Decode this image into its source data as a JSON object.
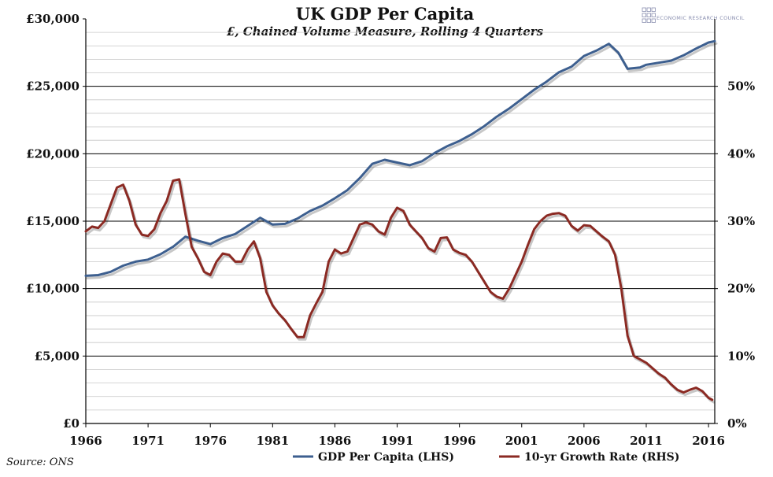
{
  "chart_data": {
    "type": "line",
    "title": "UK GDP Per Capita",
    "subtitle": "£, Chained Volume Measure, Rolling 4 Quarters",
    "source": "Source: ONS",
    "logo_text": "ECONOMIC RESEARCH COUNCIL",
    "xlim": [
      1966,
      2016.5
    ],
    "x_ticks": [
      "1966",
      "1971",
      "1976",
      "1981",
      "1986",
      "1991",
      "1996",
      "2001",
      "2006",
      "2011",
      "2016"
    ],
    "y_left": {
      "ylim": [
        0,
        30000
      ],
      "ticks": [
        "£0",
        "£5,000",
        "£10,000",
        "£15,000",
        "£20,000",
        "£25,000",
        "£30,000"
      ]
    },
    "y_right": {
      "ylim": [
        0,
        60
      ],
      "ticks": [
        "0%",
        "10%",
        "20%",
        "30%",
        "40%",
        "50%"
      ]
    },
    "grid": true,
    "legend_position": "bottom",
    "colors": {
      "gdp": "#3d5f8f",
      "growth": "#8b2a23",
      "axis": "#000000",
      "grid_major": "#000000",
      "grid_minor": "#c8c8c8",
      "logo": "#8a8fb0"
    },
    "series": [
      {
        "name": "GDP Per Capita (LHS)",
        "axis": "left",
        "x": [
          1966,
          1967,
          1968,
          1969,
          1970,
          1971,
          1972,
          1973,
          1974,
          1975,
          1976,
          1977,
          1978,
          1979,
          1980,
          1981,
          1982,
          1983,
          1984,
          1985,
          1986,
          1987,
          1988,
          1989,
          1990,
          1991,
          1992,
          1993,
          1994,
          1995,
          1996,
          1997,
          1998,
          1999,
          2000,
          2001,
          2002,
          2003,
          2004,
          2005,
          2006,
          2007,
          2008,
          2008.75,
          2009.5,
          2010.5,
          2011,
          2012,
          2013,
          2014,
          2015,
          2016,
          2016.5
        ],
        "values": [
          10950,
          11000,
          11250,
          11700,
          12000,
          12150,
          12550,
          13100,
          13850,
          13550,
          13300,
          13750,
          14050,
          14650,
          15250,
          14750,
          14800,
          15200,
          15750,
          16150,
          16700,
          17300,
          18200,
          19250,
          19550,
          19350,
          19150,
          19450,
          20050,
          20550,
          20950,
          21450,
          22050,
          22750,
          23350,
          24050,
          24750,
          25350,
          26050,
          26450,
          27250,
          27650,
          28150,
          27500,
          26300,
          26400,
          26600,
          26750,
          26900,
          27300,
          27800,
          28250,
          28350
        ]
      },
      {
        "name": "10-yr Growth Rate (RHS)",
        "axis": "right",
        "x": [
          1966,
          1966.5,
          1967,
          1967.5,
          1968,
          1968.5,
          1969,
          1969.5,
          1970,
          1970.5,
          1971,
          1971.5,
          1972,
          1972.5,
          1973,
          1973.5,
          1974,
          1974.5,
          1975,
          1975.5,
          1976,
          1976.5,
          1977,
          1977.5,
          1978,
          1978.5,
          1979,
          1979.5,
          1980,
          1980.5,
          1981,
          1981.5,
          1982,
          1982.5,
          1983,
          1983.5,
          1984,
          1984.5,
          1985,
          1985.5,
          1986,
          1986.5,
          1987,
          1987.5,
          1988,
          1988.5,
          1989,
          1989.5,
          1990,
          1990.5,
          1991,
          1991.5,
          1992,
          1992.5,
          1993,
          1993.5,
          1994,
          1994.5,
          1995,
          1995.5,
          1996,
          1996.5,
          1997,
          1997.5,
          1998,
          1998.5,
          1999,
          1999.5,
          2000,
          2000.5,
          2001,
          2001.5,
          2002,
          2002.5,
          2003,
          2003.5,
          2004,
          2004.5,
          2005,
          2005.5,
          2006,
          2006.5,
          2007,
          2007.5,
          2008,
          2008.5,
          2009,
          2009.5,
          2010,
          2010.5,
          2011,
          2011.5,
          2012,
          2012.5,
          2013,
          2013.5,
          2014,
          2014.5,
          2015,
          2015.5,
          2016,
          2016.3
        ],
        "values": [
          28.5,
          29.2,
          29.0,
          30.0,
          32.5,
          35.0,
          35.4,
          33.0,
          29.5,
          28.0,
          27.8,
          28.8,
          31.2,
          33.0,
          36.0,
          36.2,
          31.0,
          26.2,
          24.5,
          22.5,
          22.0,
          24.0,
          25.2,
          25.0,
          24.0,
          24.0,
          25.8,
          27.0,
          24.5,
          19.5,
          17.5,
          16.3,
          15.3,
          14.0,
          12.8,
          12.8,
          16.0,
          17.8,
          19.5,
          24.0,
          25.8,
          25.2,
          25.5,
          27.5,
          29.5,
          29.8,
          29.5,
          28.5,
          28.0,
          30.5,
          32.0,
          31.5,
          29.5,
          28.5,
          27.5,
          26.0,
          25.5,
          27.5,
          27.6,
          25.8,
          25.3,
          25.0,
          24.0,
          22.5,
          21.0,
          19.5,
          18.8,
          18.5,
          20.0,
          22.0,
          24.0,
          26.5,
          28.8,
          30.0,
          30.8,
          31.1,
          31.2,
          30.8,
          29.3,
          28.6,
          29.4,
          29.3,
          28.5,
          27.7,
          27.0,
          25.0,
          20.0,
          13.0,
          10.0,
          9.5,
          9.0,
          8.2,
          7.4,
          6.8,
          5.8,
          5.0,
          4.6,
          5.0,
          5.3,
          4.8,
          3.8,
          3.5
        ]
      }
    ]
  }
}
